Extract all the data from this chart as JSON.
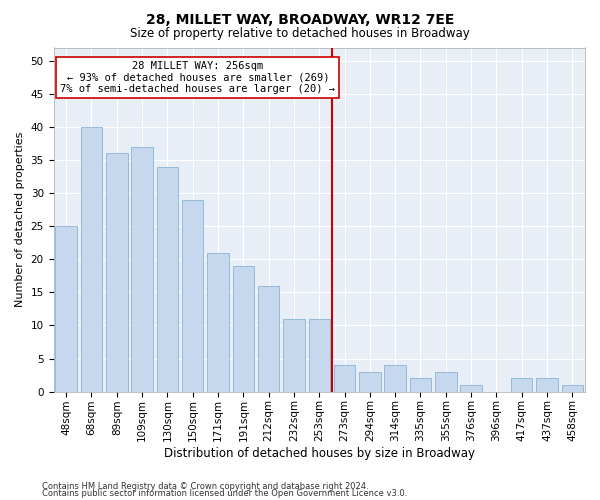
{
  "title": "28, MILLET WAY, BROADWAY, WR12 7EE",
  "subtitle": "Size of property relative to detached houses in Broadway",
  "xlabel": "Distribution of detached houses by size in Broadway",
  "ylabel": "Number of detached properties",
  "bar_labels": [
    "48sqm",
    "68sqm",
    "89sqm",
    "109sqm",
    "130sqm",
    "150sqm",
    "171sqm",
    "191sqm",
    "212sqm",
    "232sqm",
    "253sqm",
    "273sqm",
    "294sqm",
    "314sqm",
    "335sqm",
    "355sqm",
    "376sqm",
    "396sqm",
    "417sqm",
    "437sqm",
    "458sqm"
  ],
  "bar_values": [
    25,
    40,
    36,
    37,
    34,
    29,
    21,
    19,
    16,
    11,
    11,
    4,
    3,
    4,
    2,
    3,
    1,
    0,
    2,
    2,
    1
  ],
  "bar_color": "#c5d8ed",
  "bar_edgecolor": "#8ab4d4",
  "vline_x": 10.5,
  "vline_color": "#cc0000",
  "annotation_text": "28 MILLET WAY: 256sqm\n← 93% of detached houses are smaller (269)\n7% of semi-detached houses are larger (20) →",
  "annotation_box_color": "#ffffff",
  "annotation_box_edgecolor": "#cc0000",
  "bg_color": "#e8eef6",
  "grid_color": "#ffffff",
  "footnote1": "Contains HM Land Registry data © Crown copyright and database right 2024.",
  "footnote2": "Contains public sector information licensed under the Open Government Licence v3.0.",
  "ylim": [
    0,
    52
  ],
  "yticks": [
    0,
    5,
    10,
    15,
    20,
    25,
    30,
    35,
    40,
    45,
    50
  ]
}
